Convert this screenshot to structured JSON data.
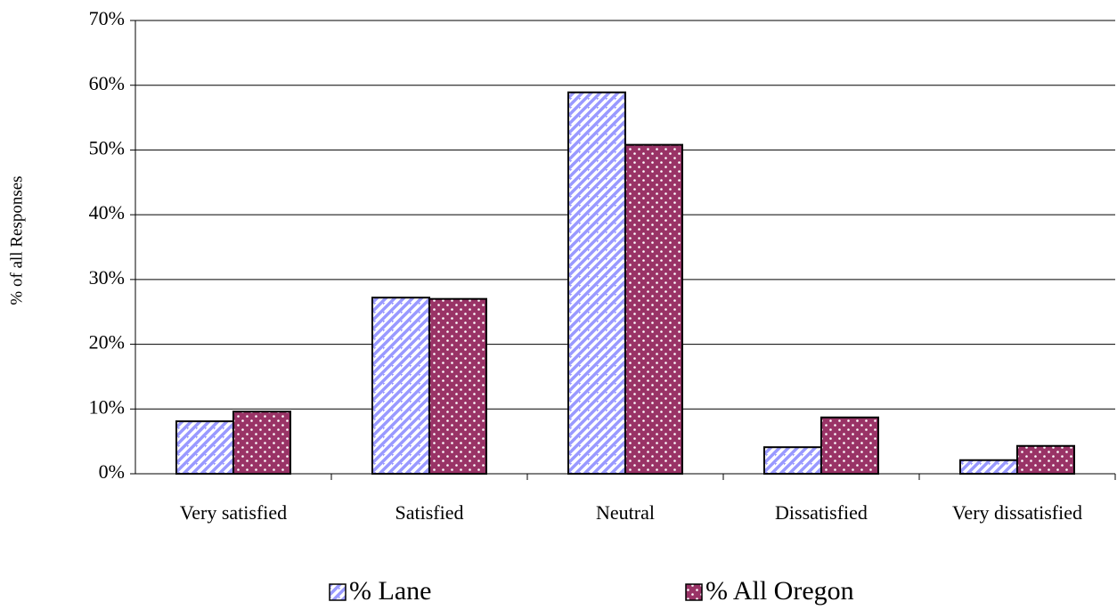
{
  "chart_data": {
    "type": "bar",
    "y_label": "% of all Responses",
    "categories": [
      "Very satisfied",
      "Satisfied",
      "Neutral",
      "Dissatisfied",
      "Very dissatisfied"
    ],
    "series": [
      {
        "name": "% Lane",
        "color": "#9999ff",
        "values": [
          8.1,
          27.2,
          58.9,
          4.1,
          2.1
        ]
      },
      {
        "name": "% All Oregon",
        "color": "#993366",
        "values": [
          9.6,
          27.0,
          50.8,
          8.7,
          4.3
        ]
      }
    ],
    "ylim": [
      0,
      70
    ],
    "yticks": [
      {
        "value": 0,
        "label": "0%"
      },
      {
        "value": 10,
        "label": "10%"
      },
      {
        "value": 20,
        "label": "20%"
      },
      {
        "value": 30,
        "label": "30%"
      },
      {
        "value": 40,
        "label": "40%"
      },
      {
        "value": 50,
        "label": "50%"
      },
      {
        "value": 60,
        "label": "60%"
      },
      {
        "value": 70,
        "label": "70%"
      }
    ],
    "grid": true
  }
}
